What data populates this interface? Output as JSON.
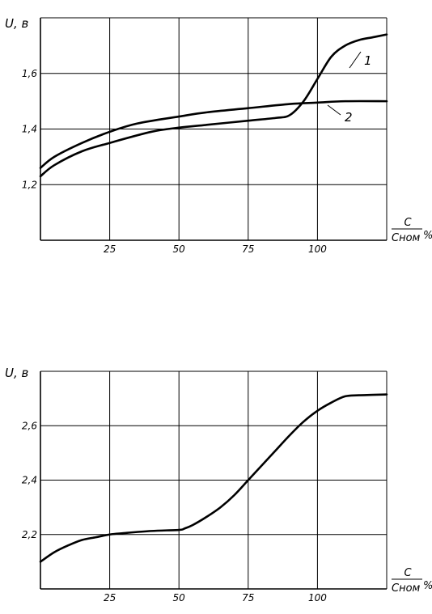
{
  "chart_data": [
    {
      "type": "line",
      "ylabel": "U, в",
      "xlabel_numerator": "C",
      "xlabel_denominator": "Cном",
      "xlabel_suffix": "%",
      "x_ticks": [
        "25",
        "50",
        "75",
        "100"
      ],
      "y_ticks": [
        "1,2",
        "1,4",
        "1,6"
      ],
      "xlim": [
        0,
        125
      ],
      "ylim": [
        1.0,
        1.8
      ],
      "grid": true,
      "series": [
        {
          "name": "1",
          "x": [
            0,
            5,
            15,
            25,
            40,
            50,
            60,
            75,
            85,
            90,
            95,
            100,
            105,
            110,
            115,
            120,
            125
          ],
          "y": [
            1.23,
            1.27,
            1.32,
            1.35,
            1.39,
            1.405,
            1.415,
            1.43,
            1.44,
            1.45,
            1.5,
            1.58,
            1.66,
            1.7,
            1.72,
            1.73,
            1.74
          ]
        },
        {
          "name": "2",
          "x": [
            0,
            5,
            15,
            25,
            35,
            50,
            60,
            75,
            90,
            100,
            110,
            125
          ],
          "y": [
            1.26,
            1.3,
            1.35,
            1.39,
            1.42,
            1.445,
            1.46,
            1.475,
            1.49,
            1.495,
            1.5,
            1.5
          ]
        }
      ]
    },
    {
      "type": "line",
      "ylabel": "U, в",
      "xlabel_numerator": "C",
      "xlabel_denominator": "Cном",
      "xlabel_suffix": "%",
      "x_ticks": [
        "25",
        "50",
        "75",
        "100"
      ],
      "y_ticks": [
        "2,2",
        "2,4",
        "2,6"
      ],
      "xlim": [
        0,
        125
      ],
      "ylim": [
        2.0,
        2.8
      ],
      "grid": true,
      "series": [
        {
          "name": "",
          "x": [
            0,
            5,
            10,
            15,
            20,
            25,
            30,
            40,
            50,
            52,
            55,
            60,
            65,
            70,
            75,
            80,
            85,
            90,
            95,
            100,
            105,
            110,
            115,
            125
          ],
          "y": [
            2.1,
            2.135,
            2.16,
            2.18,
            2.19,
            2.2,
            2.205,
            2.213,
            2.217,
            2.222,
            2.235,
            2.265,
            2.3,
            2.345,
            2.4,
            2.455,
            2.51,
            2.565,
            2.615,
            2.655,
            2.685,
            2.708,
            2.712,
            2.715
          ]
        }
      ]
    }
  ]
}
